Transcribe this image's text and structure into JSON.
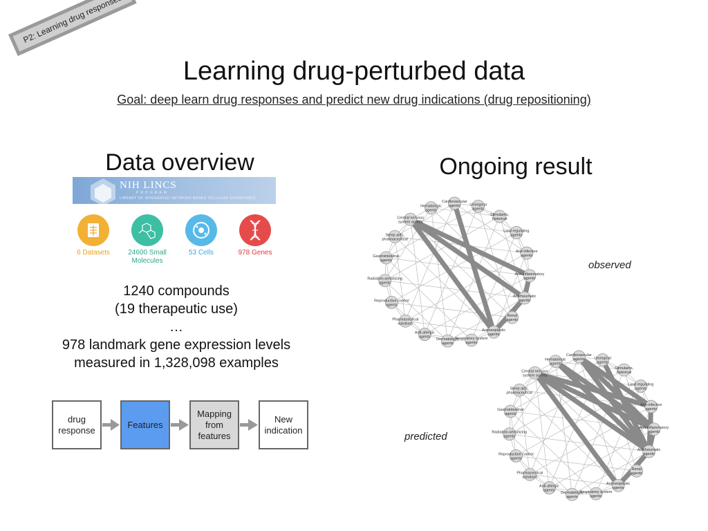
{
  "tag": "P2: Learning drug responses",
  "title": "Learning drug-perturbed data",
  "goal": "Goal: deep learn drug responses and predict new drug indications (drug repositioning)",
  "left": {
    "heading": "Data overview",
    "lincs": {
      "title": "NIH LINCS",
      "program": "PROGRAM",
      "subtitle": "LIBRARY OF INTEGRATED NETWORK-BASED CELLULAR SIGNATURES"
    },
    "stats": [
      {
        "label": "6 Datasets",
        "color": "#f2b134",
        "text_color": "#e8a21a",
        "icon": "datasets-icon"
      },
      {
        "label": "24600 Small Molecules",
        "color": "#3dbfa4",
        "text_color": "#2ca58c",
        "icon": "molecule-icon"
      },
      {
        "label": "53 Cells",
        "color": "#57b9e8",
        "text_color": "#3aa6d8",
        "icon": "cell-icon"
      },
      {
        "label": "978 Genes",
        "color": "#e64b4b",
        "text_color": "#dd3a3a",
        "icon": "dna-icon"
      }
    ],
    "info": [
      "1240 compounds",
      "(19 therapeutic use)",
      "…",
      "978 landmark gene expression levels",
      "measured in 1,328,098 examples"
    ],
    "flow": [
      {
        "label": "drug response",
        "highlight": false
      },
      {
        "label": "Features",
        "highlight": true
      },
      {
        "label": "Mapping from features",
        "highlight": false
      },
      {
        "label": "New indication",
        "highlight": false
      }
    ],
    "flow_colors": {
      "highlight": "#5b9cf0",
      "gray": "#d8d8d8"
    }
  },
  "right": {
    "heading": "Ongoing result",
    "observed_label": "observed",
    "predicted_label": "predicted",
    "nodes": [
      "Cardiovascular agents",
      "Urological agents",
      "Stimulants, historical",
      "Lipid regulating agents",
      "Anti-infective agents",
      "Anti-inflammatory agents",
      "Antirheumatic agents",
      "Renal agents",
      "Antineoplastic agents",
      "Respiratory system agents",
      "Dermatologic agents",
      "Anti-allergic agents",
      "Pharmaceutical solutions",
      "Reproductive control agents",
      "Radiation-sensitizing agents",
      "Gastrointestinal agents",
      "Sleep aids, pharmaceutical",
      "Central nervous system agents",
      "Hematologic agents"
    ],
    "observed_thick_edges": [
      [
        17,
        5
      ],
      [
        17,
        6
      ],
      [
        17,
        8
      ],
      [
        5,
        6
      ],
      [
        6,
        8
      ],
      [
        0,
        8
      ]
    ],
    "predicted_thick_edges": [
      [
        17,
        5
      ],
      [
        17,
        6
      ],
      [
        17,
        4
      ],
      [
        17,
        8
      ],
      [
        18,
        6
      ],
      [
        18,
        5
      ],
      [
        0,
        5
      ],
      [
        0,
        6
      ],
      [
        0,
        4
      ],
      [
        1,
        6
      ],
      [
        5,
        6
      ],
      [
        6,
        8
      ],
      [
        4,
        6
      ]
    ]
  }
}
